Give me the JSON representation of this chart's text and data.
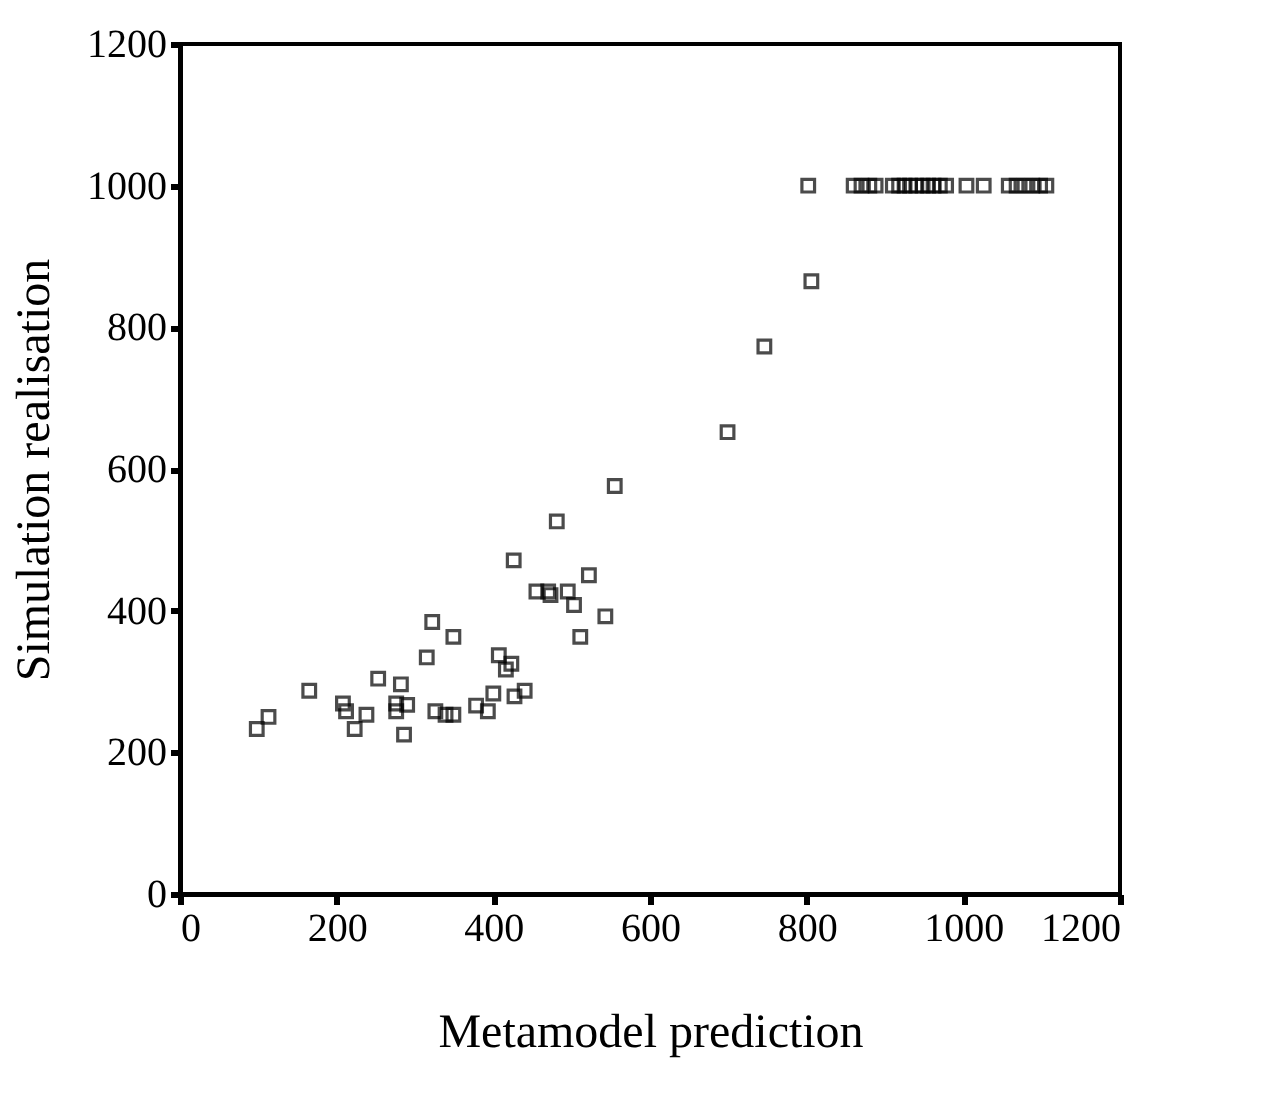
{
  "chart_data": {
    "type": "scatter",
    "xlabel": "Metamodel prediction",
    "ylabel": "Simulation realisation",
    "x": [
      98,
      113,
      165,
      208,
      212,
      223,
      238,
      253,
      282,
      276,
      276,
      290,
      286,
      315,
      322,
      326,
      339,
      349,
      349,
      378,
      393,
      400,
      407,
      416,
      423,
      427,
      440,
      426,
      455,
      470,
      473,
      481,
      495,
      503,
      511,
      522,
      543,
      555,
      699,
      746,
      802,
      806,
      860,
      870,
      880,
      888,
      910,
      918,
      925,
      932,
      940,
      948,
      955,
      962,
      970,
      978,
      1004,
      1026,
      1058,
      1068,
      1078,
      1088,
      1098,
      1106
    ],
    "values": [
      233,
      250,
      287,
      269,
      258,
      233,
      253,
      304,
      296,
      269,
      258,
      267,
      225,
      334,
      384,
      258,
      253,
      253,
      363,
      266,
      258,
      283,
      337,
      317,
      325,
      279,
      287,
      471,
      427,
      427,
      422,
      526,
      427,
      408,
      363,
      450,
      392,
      576,
      652,
      773,
      1000,
      865,
      1000,
      1000,
      1000,
      1000,
      1000,
      1000,
      1000,
      1000,
      1000,
      1000,
      1000,
      1000,
      1000,
      1000,
      1000,
      1000,
      1000,
      1000,
      1000,
      1000,
      1000,
      1000
    ],
    "color": "#000000",
    "marker": "square",
    "xlim": [
      0,
      1200
    ],
    "xticks": [
      0,
      200,
      400,
      600,
      800,
      1000,
      1200
    ],
    "ylim": [
      0,
      1200
    ],
    "yticks": [
      0,
      200,
      400,
      600,
      800,
      1000,
      1200
    ],
    "grid": false
  }
}
